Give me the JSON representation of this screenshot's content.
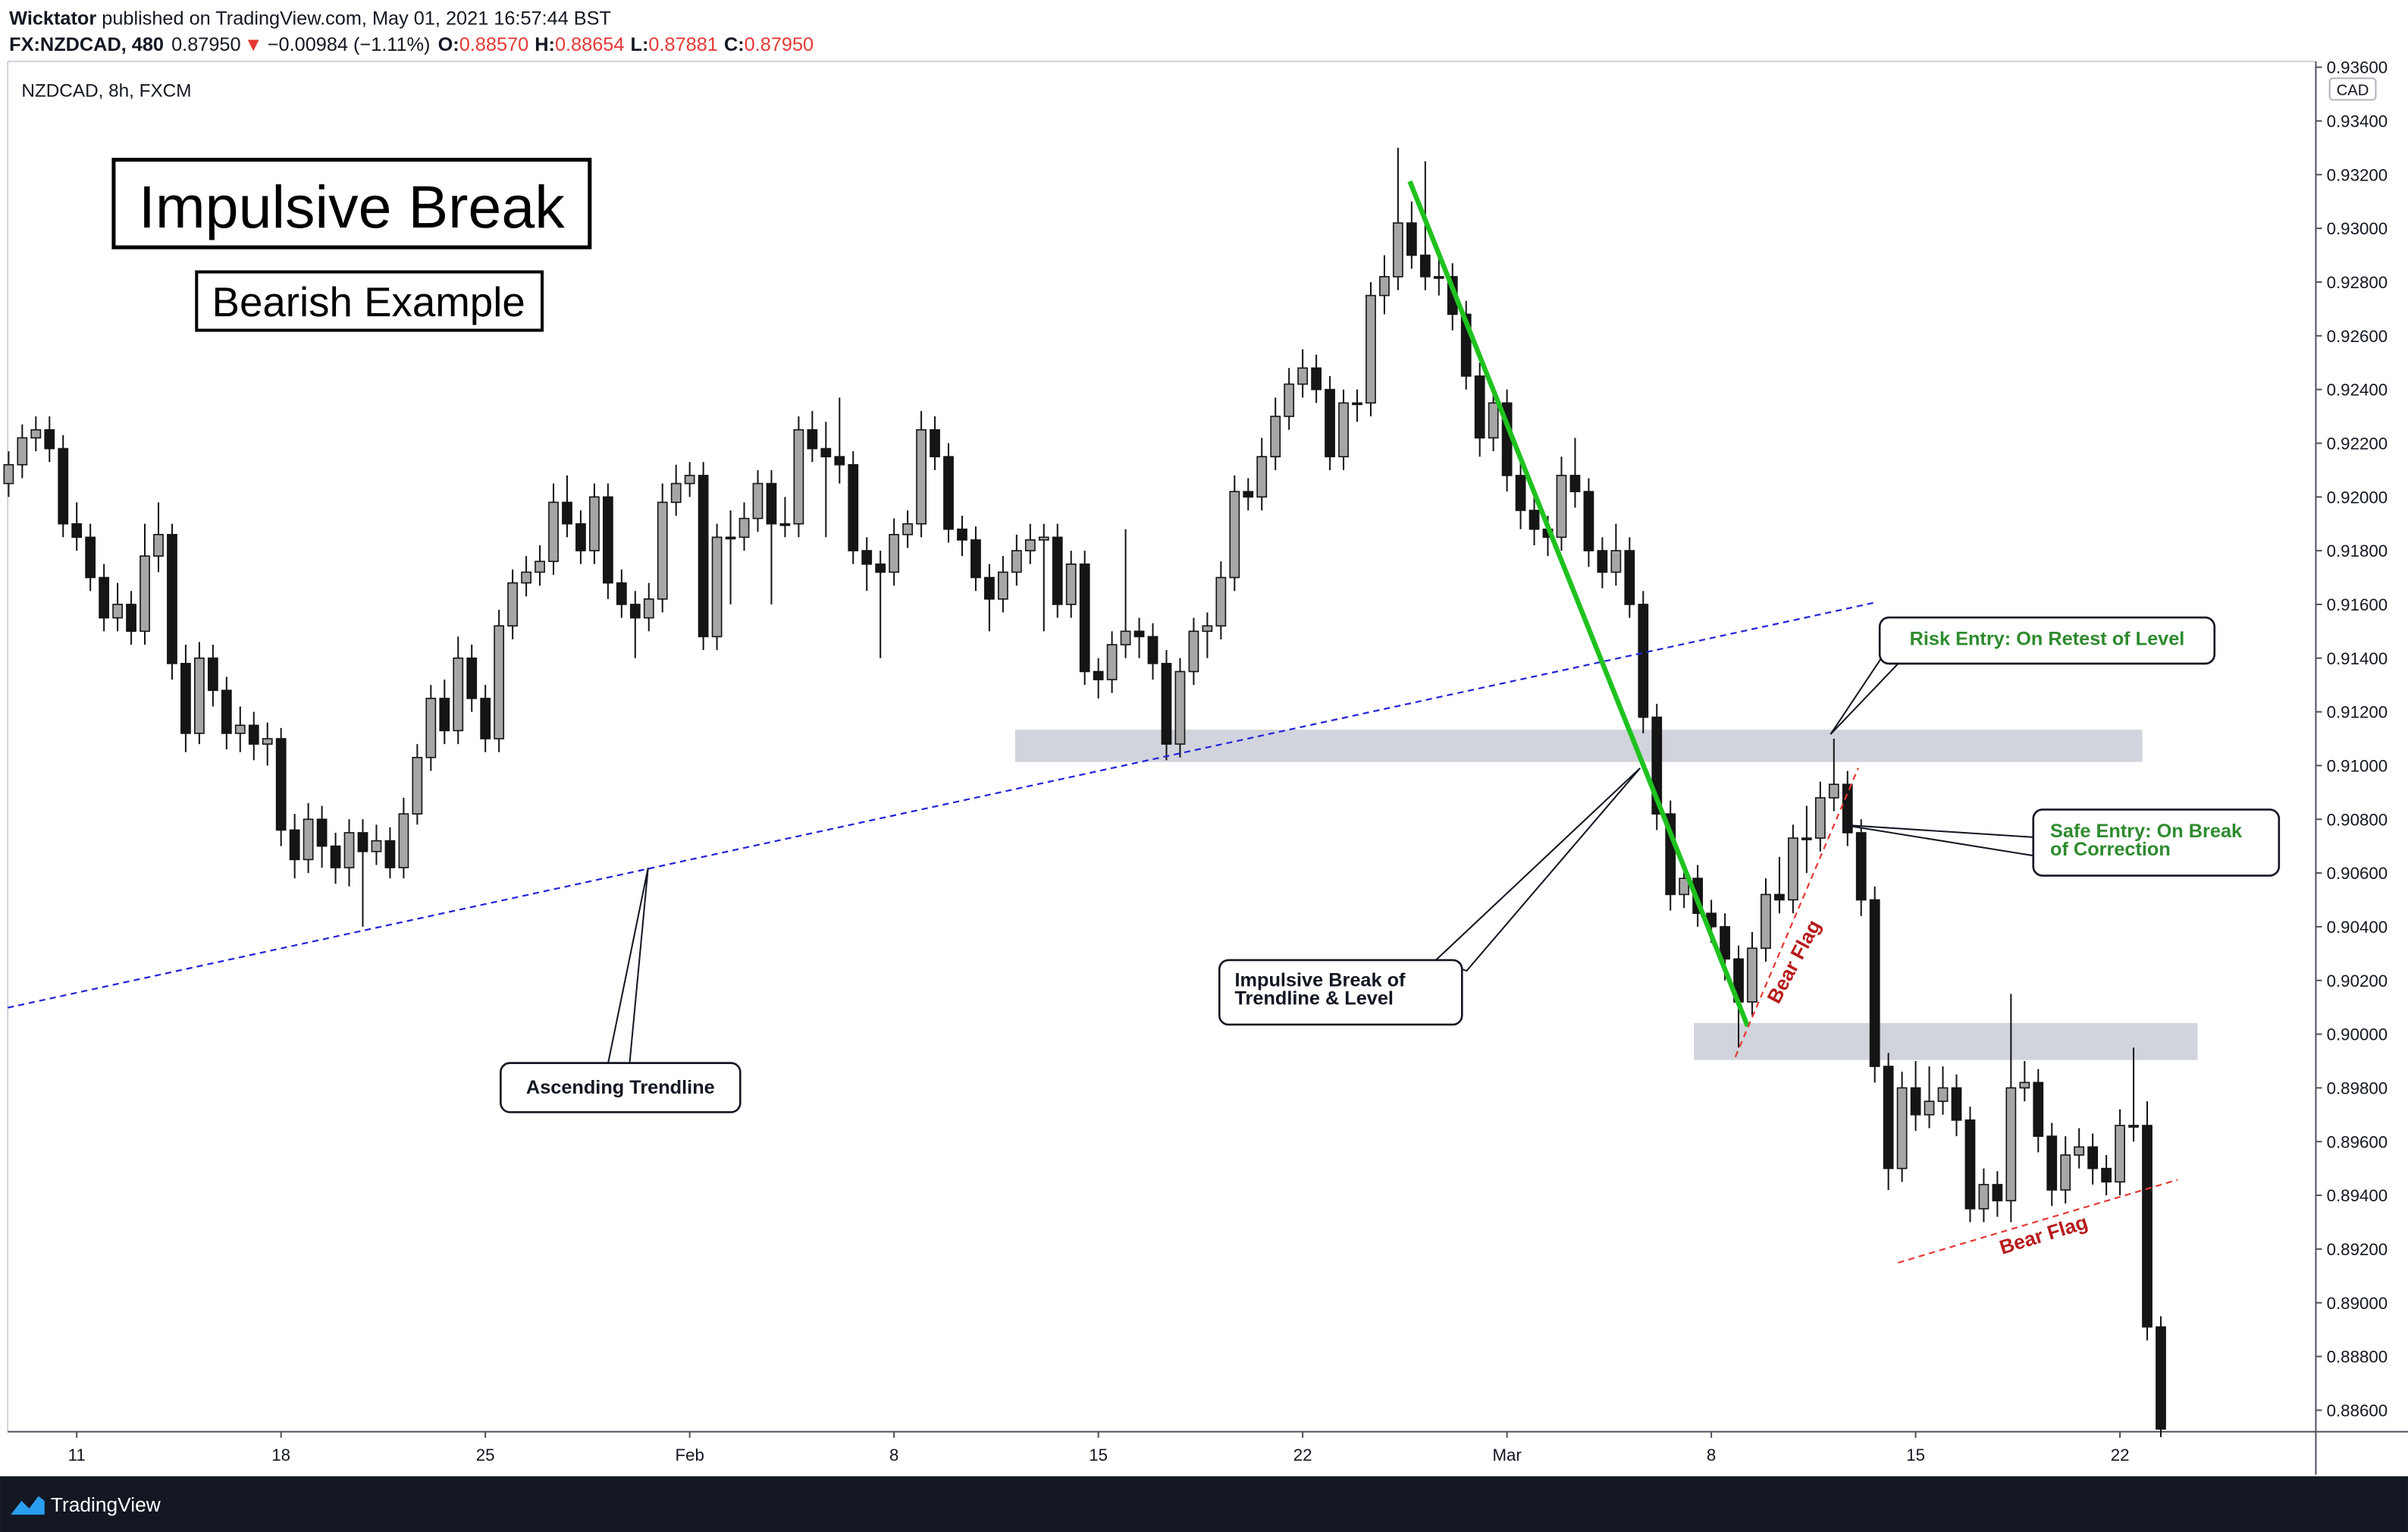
{
  "header": {
    "author": "Wicktator",
    "published": " published on TradingView.com, May 01, 2021 16:57:44 BST",
    "symbol": "FX:NZDCAD, 480",
    "last": "0.87950",
    "arrow": "▼",
    "change": "−0.00984 (−1.11%)",
    "o_label": "O:",
    "o": "0.88570",
    "h_label": "H:",
    "h": "0.88654",
    "l_label": "L:",
    "l": "0.87881",
    "c_label": "C:",
    "c": "0.87950"
  },
  "footer": {
    "brand": "TradingView"
  },
  "chart_data": {
    "type": "candlestick",
    "title": "Impulsive Break",
    "subtitle": "Bearish Example",
    "instrument": "NZDCAD, 8h, FXCM",
    "currency": "CAD",
    "up_color": "#a6a6a6",
    "down_color": "#151515",
    "wick_color": "#151515",
    "grid": false,
    "ylim": [
      0.8852,
      0.9361
    ],
    "yticks": [
      {
        "value": 0.936,
        "label": "0.93600"
      },
      {
        "value": 0.934,
        "label": "0.93400"
      },
      {
        "value": 0.932,
        "label": "0.93200"
      },
      {
        "value": 0.93,
        "label": "0.93000"
      },
      {
        "value": 0.928,
        "label": "0.92800"
      },
      {
        "value": 0.926,
        "label": "0.92600"
      },
      {
        "value": 0.924,
        "label": "0.92400"
      },
      {
        "value": 0.922,
        "label": "0.92200"
      },
      {
        "value": 0.92,
        "label": "0.92000"
      },
      {
        "value": 0.918,
        "label": "0.91800"
      },
      {
        "value": 0.916,
        "label": "0.91600"
      },
      {
        "value": 0.914,
        "label": "0.91400"
      },
      {
        "value": 0.912,
        "label": "0.91200"
      },
      {
        "value": 0.91,
        "label": "0.91000"
      },
      {
        "value": 0.908,
        "label": "0.90800"
      },
      {
        "value": 0.906,
        "label": "0.90600"
      },
      {
        "value": 0.904,
        "label": "0.90400"
      },
      {
        "value": 0.902,
        "label": "0.90200"
      },
      {
        "value": 0.9,
        "label": "0.90000"
      },
      {
        "value": 0.898,
        "label": "0.89800"
      },
      {
        "value": 0.896,
        "label": "0.89600"
      },
      {
        "value": 0.894,
        "label": "0.89400"
      },
      {
        "value": 0.892,
        "label": "0.89200"
      },
      {
        "value": 0.89,
        "label": "0.89000"
      },
      {
        "value": 0.888,
        "label": "0.88800"
      },
      {
        "value": 0.886,
        "label": "0.88600"
      }
    ],
    "categories": [
      null,
      null,
      null,
      null,
      null,
      "11",
      null,
      null,
      null,
      null,
      null,
      null,
      null,
      null,
      null,
      null,
      null,
      null,
      null,
      null,
      "18",
      null,
      null,
      null,
      null,
      null,
      null,
      null,
      null,
      null,
      null,
      null,
      null,
      null,
      null,
      "25",
      null,
      null,
      null,
      null,
      null,
      null,
      null,
      null,
      null,
      null,
      null,
      null,
      null,
      null,
      "Feb",
      null,
      null,
      null,
      null,
      null,
      null,
      null,
      null,
      null,
      null,
      null,
      null,
      null,
      null,
      "8",
      null,
      null,
      null,
      null,
      null,
      null,
      null,
      null,
      null,
      null,
      null,
      null,
      null,
      null,
      "15",
      null,
      null,
      null,
      null,
      null,
      null,
      null,
      null,
      null,
      null,
      null,
      null,
      null,
      null,
      "22",
      null,
      null,
      null,
      null,
      null,
      null,
      null,
      null,
      null,
      null,
      null,
      null,
      null,
      null,
      "Mar",
      null,
      null,
      null,
      null,
      null,
      null,
      null,
      null,
      null,
      null,
      null,
      null,
      null,
      null,
      "8",
      null,
      null,
      null,
      null,
      null,
      null,
      null,
      null,
      null,
      null,
      null,
      null,
      null,
      null,
      "15",
      null,
      null,
      null,
      null,
      null,
      null,
      null,
      null,
      null,
      null,
      null,
      null,
      null,
      null,
      "22",
      null,
      null,
      null
    ],
    "candles": [
      [
        0.9205,
        0.9217,
        0.92,
        0.9212
      ],
      [
        0.9212,
        0.9227,
        0.9207,
        0.9222
      ],
      [
        0.9222,
        0.923,
        0.9217,
        0.9225
      ],
      [
        0.9225,
        0.923,
        0.9213,
        0.9218
      ],
      [
        0.9218,
        0.9223,
        0.9185,
        0.919
      ],
      [
        0.919,
        0.9198,
        0.918,
        0.9185
      ],
      [
        0.9185,
        0.919,
        0.9165,
        0.917
      ],
      [
        0.917,
        0.9175,
        0.915,
        0.9155
      ],
      [
        0.9155,
        0.9168,
        0.915,
        0.916
      ],
      [
        0.916,
        0.9165,
        0.9145,
        0.915
      ],
      [
        0.915,
        0.919,
        0.9145,
        0.9178
      ],
      [
        0.9178,
        0.9198,
        0.9172,
        0.9186
      ],
      [
        0.9186,
        0.919,
        0.9132,
        0.9138
      ],
      [
        0.9138,
        0.9145,
        0.9105,
        0.9112
      ],
      [
        0.9112,
        0.9146,
        0.9108,
        0.914
      ],
      [
        0.914,
        0.9145,
        0.9122,
        0.9128
      ],
      [
        0.9128,
        0.9133,
        0.9106,
        0.9112
      ],
      [
        0.9112,
        0.9122,
        0.9105,
        0.9115
      ],
      [
        0.9115,
        0.912,
        0.9102,
        0.9108
      ],
      [
        0.9108,
        0.9116,
        0.91,
        0.911
      ],
      [
        0.911,
        0.9114,
        0.907,
        0.9076
      ],
      [
        0.9076,
        0.9082,
        0.9058,
        0.9065
      ],
      [
        0.9065,
        0.9086,
        0.906,
        0.908
      ],
      [
        0.908,
        0.9085,
        0.9062,
        0.907
      ],
      [
        0.907,
        0.9075,
        0.9056,
        0.9062
      ],
      [
        0.9062,
        0.908,
        0.9055,
        0.9075
      ],
      [
        0.9075,
        0.908,
        0.904,
        0.9068
      ],
      [
        0.9068,
        0.9078,
        0.9063,
        0.9072
      ],
      [
        0.9072,
        0.9077,
        0.9058,
        0.9062
      ],
      [
        0.9062,
        0.9088,
        0.9058,
        0.9082
      ],
      [
        0.9082,
        0.9108,
        0.9078,
        0.9103
      ],
      [
        0.9103,
        0.913,
        0.9098,
        0.9125
      ],
      [
        0.9125,
        0.9132,
        0.9108,
        0.9113
      ],
      [
        0.9113,
        0.9148,
        0.9108,
        0.914
      ],
      [
        0.914,
        0.9145,
        0.912,
        0.9125
      ],
      [
        0.9125,
        0.913,
        0.9105,
        0.911
      ],
      [
        0.911,
        0.9158,
        0.9105,
        0.9152
      ],
      [
        0.9152,
        0.9173,
        0.9147,
        0.9168
      ],
      [
        0.9168,
        0.9178,
        0.9163,
        0.9172
      ],
      [
        0.9172,
        0.9182,
        0.9167,
        0.9176
      ],
      [
        0.9176,
        0.9205,
        0.9171,
        0.9198
      ],
      [
        0.9198,
        0.9208,
        0.9185,
        0.919
      ],
      [
        0.919,
        0.9195,
        0.9175,
        0.918
      ],
      [
        0.918,
        0.9205,
        0.9175,
        0.92
      ],
      [
        0.92,
        0.9205,
        0.9162,
        0.9168
      ],
      [
        0.9168,
        0.9173,
        0.9155,
        0.916
      ],
      [
        0.916,
        0.9165,
        0.914,
        0.9155
      ],
      [
        0.9155,
        0.9168,
        0.915,
        0.9162
      ],
      [
        0.9162,
        0.9205,
        0.9157,
        0.9198
      ],
      [
        0.9198,
        0.9212,
        0.9193,
        0.9205
      ],
      [
        0.9205,
        0.9213,
        0.92,
        0.9208
      ],
      [
        0.9208,
        0.9213,
        0.9143,
        0.9148
      ],
      [
        0.9148,
        0.919,
        0.9143,
        0.9185
      ],
      [
        0.9185,
        0.9195,
        0.916,
        0.9185
      ],
      [
        0.9185,
        0.9198,
        0.918,
        0.9192
      ],
      [
        0.9192,
        0.921,
        0.9187,
        0.9205
      ],
      [
        0.9205,
        0.921,
        0.916,
        0.919
      ],
      [
        0.919,
        0.92,
        0.9185,
        0.919
      ],
      [
        0.919,
        0.923,
        0.9185,
        0.9225
      ],
      [
        0.9225,
        0.9232,
        0.9213,
        0.9218
      ],
      [
        0.9218,
        0.9228,
        0.9185,
        0.9215
      ],
      [
        0.9215,
        0.9237,
        0.9205,
        0.9212
      ],
      [
        0.9212,
        0.9217,
        0.9175,
        0.918
      ],
      [
        0.918,
        0.9185,
        0.9165,
        0.9175
      ],
      [
        0.9175,
        0.918,
        0.914,
        0.9172
      ],
      [
        0.9172,
        0.9192,
        0.9167,
        0.9186
      ],
      [
        0.9186,
        0.9195,
        0.9181,
        0.919
      ],
      [
        0.919,
        0.9232,
        0.9185,
        0.9225
      ],
      [
        0.9225,
        0.923,
        0.921,
        0.9215
      ],
      [
        0.9215,
        0.922,
        0.9183,
        0.9188
      ],
      [
        0.9188,
        0.9193,
        0.9178,
        0.9184
      ],
      [
        0.9184,
        0.9189,
        0.9165,
        0.917
      ],
      [
        0.917,
        0.9175,
        0.915,
        0.9162
      ],
      [
        0.9162,
        0.9178,
        0.9157,
        0.9172
      ],
      [
        0.9172,
        0.9186,
        0.9167,
        0.918
      ],
      [
        0.918,
        0.919,
        0.9175,
        0.9184
      ],
      [
        0.9184,
        0.919,
        0.915,
        0.9185
      ],
      [
        0.9185,
        0.919,
        0.9155,
        0.916
      ],
      [
        0.916,
        0.918,
        0.9155,
        0.9175
      ],
      [
        0.9175,
        0.918,
        0.913,
        0.9135
      ],
      [
        0.9135,
        0.914,
        0.9125,
        0.9132
      ],
      [
        0.9132,
        0.915,
        0.9127,
        0.9145
      ],
      [
        0.9145,
        0.9188,
        0.914,
        0.915
      ],
      [
        0.915,
        0.9155,
        0.914,
        0.9148
      ],
      [
        0.9148,
        0.9153,
        0.9132,
        0.9138
      ],
      [
        0.9138,
        0.9143,
        0.9102,
        0.9108
      ],
      [
        0.9108,
        0.914,
        0.9103,
        0.9135
      ],
      [
        0.9135,
        0.9155,
        0.913,
        0.915
      ],
      [
        0.915,
        0.9157,
        0.914,
        0.9152
      ],
      [
        0.9152,
        0.9176,
        0.9147,
        0.917
      ],
      [
        0.917,
        0.9208,
        0.9165,
        0.9202
      ],
      [
        0.9202,
        0.9207,
        0.9195,
        0.92
      ],
      [
        0.92,
        0.9222,
        0.9195,
        0.9215
      ],
      [
        0.9215,
        0.9237,
        0.921,
        0.923
      ],
      [
        0.923,
        0.9248,
        0.9225,
        0.9242
      ],
      [
        0.9242,
        0.9255,
        0.9237,
        0.9248
      ],
      [
        0.9248,
        0.9253,
        0.9235,
        0.924
      ],
      [
        0.924,
        0.9245,
        0.921,
        0.9215
      ],
      [
        0.9215,
        0.924,
        0.921,
        0.9235
      ],
      [
        0.9235,
        0.924,
        0.9228,
        0.9235
      ],
      [
        0.9235,
        0.928,
        0.923,
        0.9275
      ],
      [
        0.9275,
        0.929,
        0.9268,
        0.9282
      ],
      [
        0.9282,
        0.933,
        0.9277,
        0.9302
      ],
      [
        0.9302,
        0.931,
        0.9285,
        0.929
      ],
      [
        0.929,
        0.9325,
        0.9277,
        0.9282
      ],
      [
        0.9282,
        0.929,
        0.9275,
        0.9282
      ],
      [
        0.9282,
        0.9287,
        0.9262,
        0.9268
      ],
      [
        0.9268,
        0.9273,
        0.924,
        0.9245
      ],
      [
        0.9245,
        0.925,
        0.9215,
        0.9222
      ],
      [
        0.9222,
        0.924,
        0.9217,
        0.9235
      ],
      [
        0.9235,
        0.924,
        0.9202,
        0.9208
      ],
      [
        0.9208,
        0.9213,
        0.9188,
        0.9195
      ],
      [
        0.9195,
        0.92,
        0.9182,
        0.9188
      ],
      [
        0.9188,
        0.9193,
        0.9178,
        0.9185
      ],
      [
        0.9185,
        0.9215,
        0.918,
        0.9208
      ],
      [
        0.9208,
        0.9222,
        0.9196,
        0.9202
      ],
      [
        0.9202,
        0.9207,
        0.9174,
        0.918
      ],
      [
        0.918,
        0.9185,
        0.9166,
        0.9172
      ],
      [
        0.9172,
        0.919,
        0.9167,
        0.918
      ],
      [
        0.918,
        0.9185,
        0.9155,
        0.916
      ],
      [
        0.916,
        0.9165,
        0.9112,
        0.9118
      ],
      [
        0.9118,
        0.9123,
        0.9076,
        0.9082
      ],
      [
        0.9082,
        0.9087,
        0.9046,
        0.9052
      ],
      [
        0.9052,
        0.9063,
        0.9047,
        0.9058
      ],
      [
        0.9058,
        0.9063,
        0.904,
        0.9045
      ],
      [
        0.9045,
        0.905,
        0.9034,
        0.904
      ],
      [
        0.904,
        0.9045,
        0.902,
        0.9028
      ],
      [
        0.9028,
        0.9033,
        0.8995,
        0.9012
      ],
      [
        0.9012,
        0.9038,
        0.9007,
        0.9032
      ],
      [
        0.9032,
        0.9058,
        0.9027,
        0.9052
      ],
      [
        0.9052,
        0.9066,
        0.9045,
        0.905
      ],
      [
        0.905,
        0.9078,
        0.9045,
        0.9073
      ],
      [
        0.9073,
        0.9085,
        0.906,
        0.9073
      ],
      [
        0.9073,
        0.9094,
        0.9068,
        0.9088
      ],
      [
        0.9088,
        0.911,
        0.9083,
        0.9093
      ],
      [
        0.9093,
        0.9098,
        0.907,
        0.9075
      ],
      [
        0.9075,
        0.908,
        0.9044,
        0.905
      ],
      [
        0.905,
        0.9055,
        0.8982,
        0.8988
      ],
      [
        0.8988,
        0.8993,
        0.8942,
        0.895
      ],
      [
        0.895,
        0.8986,
        0.8945,
        0.898
      ],
      [
        0.898,
        0.899,
        0.8964,
        0.897
      ],
      [
        0.897,
        0.8988,
        0.8965,
        0.8975
      ],
      [
        0.8975,
        0.8988,
        0.897,
        0.898
      ],
      [
        0.898,
        0.8985,
        0.8962,
        0.8968
      ],
      [
        0.8968,
        0.8973,
        0.893,
        0.8935
      ],
      [
        0.8935,
        0.895,
        0.893,
        0.8944
      ],
      [
        0.8944,
        0.8949,
        0.8932,
        0.8938
      ],
      [
        0.8938,
        0.9015,
        0.893,
        0.898
      ],
      [
        0.898,
        0.899,
        0.8975,
        0.8982
      ],
      [
        0.8982,
        0.8987,
        0.8956,
        0.8962
      ],
      [
        0.8962,
        0.8967,
        0.8936,
        0.8942
      ],
      [
        0.8942,
        0.8962,
        0.8937,
        0.8955
      ],
      [
        0.8955,
        0.8965,
        0.895,
        0.8958
      ],
      [
        0.8958,
        0.8963,
        0.8944,
        0.895
      ],
      [
        0.895,
        0.8955,
        0.894,
        0.8945
      ],
      [
        0.8945,
        0.8972,
        0.894,
        0.8966
      ],
      [
        0.8966,
        0.8995,
        0.896,
        0.8966
      ],
      [
        0.8966,
        0.8975,
        0.8886,
        0.8891
      ],
      [
        0.8891,
        0.8895,
        0.885,
        0.8853
      ]
    ],
    "annotations": {
      "trendline": [
        "Ascending Trendline"
      ],
      "impulse": [
        "Impulsive Break of",
        "Trendline & Level"
      ],
      "risk": [
        "Risk Entry: On Retest of Level"
      ],
      "safe": [
        "Safe Entry: On Break",
        "of Correction"
      ],
      "flag1": "Bear Flag",
      "flag2": "Bear Flag"
    }
  }
}
